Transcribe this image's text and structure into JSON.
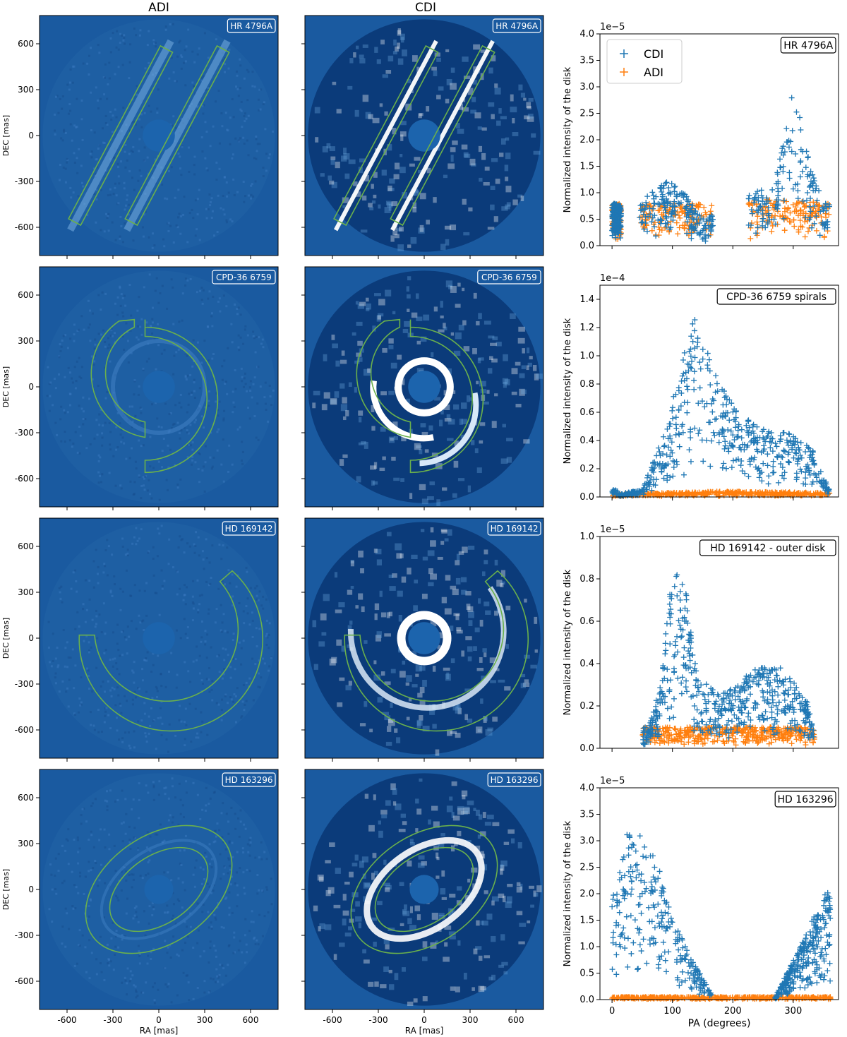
{
  "figure": {
    "col_titles": [
      "ADI",
      "CDI"
    ],
    "image_axes": {
      "xlabel": "RA [mas]",
      "ylabel": "DEC [mas]",
      "xticks": [
        -600,
        -300,
        0,
        300,
        600
      ],
      "yticks": [
        600,
        300,
        0,
        -300,
        -600
      ],
      "tick_labels_x": [
        "-600",
        "-300",
        "0",
        "300",
        "600"
      ],
      "tick_labels_y": [
        "600",
        "300",
        "0",
        "-300",
        "-600"
      ]
    },
    "rows": [
      {
        "target": "HR 4796A",
        "adi_label": "HR 4796A",
        "cdi_label": "HR 4796A",
        "plot_label": "HR 4796A",
        "scale": "1e−5",
        "ymax": 4.0,
        "ytick_labels": [
          "0.0",
          "0.5",
          "1.0",
          "1.5",
          "2.0",
          "2.5",
          "3.0",
          "3.5",
          "4.0"
        ]
      },
      {
        "target": "CPD-36 6759",
        "adi_label": "CPD-36 6759",
        "cdi_label": "CPD-36 6759",
        "plot_label": "CPD-36 6759 spirals",
        "scale": "1e−4",
        "ymax": 1.5,
        "ytick_labels": [
          "0.0",
          "0.2",
          "0.4",
          "0.6",
          "0.8",
          "1.0",
          "1.2",
          "1.4"
        ]
      },
      {
        "target": "HD 169142",
        "adi_label": "HD 169142",
        "cdi_label": "HD 169142",
        "plot_label": "HD 169142 - outer disk",
        "scale": "1e−5",
        "ymax": 1.0,
        "ytick_labels": [
          "0.0",
          "0.2",
          "0.4",
          "0.6",
          "0.8",
          "1.0"
        ]
      },
      {
        "target": "HD 163296",
        "adi_label": "HD 163296",
        "cdi_label": "HD 163296",
        "plot_label": "HD 163296",
        "scale": "1e−5",
        "ymax": 4.0,
        "ytick_labels": [
          "0.0",
          "0.5",
          "1.0",
          "1.5",
          "2.0",
          "2.5",
          "3.0",
          "3.5",
          "4.0"
        ]
      }
    ],
    "plot_axes": {
      "ylabel": "Normalized intensity of the disk",
      "xlabel": "PA (degrees)",
      "xticks": [
        0,
        100,
        200,
        300
      ],
      "xtick_labels": [
        "0",
        "100",
        "200",
        "300"
      ],
      "xlim": [
        -20,
        375
      ]
    },
    "legend": {
      "cdi": "CDI",
      "adi": "ADI"
    },
    "colors": {
      "cdi": "#1f77b4",
      "adi": "#ff7f0e",
      "image_bg": "#1a5aa0",
      "image_dark": "#0b3b7a",
      "contour": "#6ab04c"
    }
  },
  "chart_data": [
    {
      "type": "scatter",
      "title": "HR 4796A",
      "xlabel": "PA (degrees)",
      "ylabel": "Normalized intensity of the disk",
      "ylim": [
        0,
        4e-05
      ],
      "xlim": [
        -20,
        375
      ],
      "legend": "top-left",
      "series": [
        {
          "name": "CDI",
          "ranges": [
            [
              0,
              15
            ],
            [
              45,
              170
            ],
            [
              225,
              360
            ]
          ],
          "peaks": [
            [
              5,
              0.8
            ],
            [
              30,
              0.7
            ],
            [
              100,
              1.3
            ],
            [
              150,
              0.5
            ],
            [
              270,
              1.2
            ],
            [
              300,
              3.0
            ],
            [
              320,
              2.0
            ],
            [
              350,
              0.8
            ]
          ],
          "scale": 1e-05
        },
        {
          "name": "ADI",
          "ranges": [
            [
              0,
              15
            ],
            [
              45,
              165
            ],
            [
              225,
              360
            ]
          ],
          "peaks": [
            [
              5,
              0.8
            ],
            [
              30,
              0.8
            ],
            [
              150,
              0.8
            ],
            [
              300,
              0.9
            ],
            [
              350,
              0.8
            ]
          ],
          "scale": 1e-05
        }
      ]
    },
    {
      "type": "scatter",
      "title": "CPD-36 6759 spirals",
      "xlabel": "PA (degrees)",
      "ylabel": "Normalized intensity of the disk",
      "ylim": [
        0,
        0.00015
      ],
      "xlim": [
        -20,
        375
      ],
      "series": [
        {
          "name": "CDI",
          "ranges": [
            [
              0,
              360
            ]
          ],
          "peaks": [
            [
              10,
              0.02
            ],
            [
              50,
              0.05
            ],
            [
              90,
              0.5
            ],
            [
              135,
              1.32
            ],
            [
              160,
              1.0
            ],
            [
              200,
              0.65
            ],
            [
              240,
              0.5
            ],
            [
              290,
              0.46
            ],
            [
              330,
              0.35
            ],
            [
              360,
              0.05
            ]
          ],
          "scale": 0.0001
        },
        {
          "name": "ADI",
          "ranges": [
            [
              0,
              360
            ]
          ],
          "peaks": [
            [
              0,
              0.02
            ],
            [
              180,
              0.04
            ],
            [
              360,
              0.03
            ]
          ],
          "scale": 0.0001
        }
      ]
    },
    {
      "type": "scatter",
      "title": "HD 169142 - outer disk",
      "xlabel": "PA (degrees)",
      "ylabel": "Normalized intensity of the disk",
      "ylim": [
        0,
        1e-05
      ],
      "xlim": [
        -20,
        375
      ],
      "series": [
        {
          "name": "CDI",
          "ranges": [
            [
              50,
              335
            ]
          ],
          "peaks": [
            [
              55,
              0.05
            ],
            [
              80,
              0.3
            ],
            [
              100,
              0.85
            ],
            [
              120,
              0.8
            ],
            [
              140,
              0.35
            ],
            [
              180,
              0.25
            ],
            [
              240,
              0.38
            ],
            [
              280,
              0.38
            ],
            [
              320,
              0.25
            ],
            [
              335,
              0.1
            ]
          ],
          "scale": 1e-05
        },
        {
          "name": "ADI",
          "ranges": [
            [
              50,
              335
            ]
          ],
          "peaks": [
            [
              60,
              0.1
            ],
            [
              200,
              0.1
            ],
            [
              330,
              0.1
            ]
          ],
          "scale": 1e-05
        }
      ]
    },
    {
      "type": "scatter",
      "title": "HD 163296",
      "xlabel": "PA (degrees)",
      "ylabel": "Normalized intensity of the disk",
      "ylim": [
        0,
        4e-05
      ],
      "xlim": [
        -20,
        375
      ],
      "series": [
        {
          "name": "CDI",
          "ranges": [
            [
              0,
              165
            ],
            [
              270,
              362
            ]
          ],
          "peaks": [
            [
              0,
              1.9
            ],
            [
              30,
              3.5
            ],
            [
              75,
              2.6
            ],
            [
              100,
              1.5
            ],
            [
              150,
              0.4
            ],
            [
              165,
              0.1
            ],
            [
              270,
              0.05
            ],
            [
              320,
              1.2
            ],
            [
              355,
              2.1
            ],
            [
              362,
              1.9
            ]
          ],
          "scale": 1e-05
        },
        {
          "name": "ADI",
          "ranges": [
            [
              0,
              362
            ]
          ],
          "peaks": [
            [
              0,
              0.05
            ],
            [
              180,
              0.05
            ],
            [
              362,
              0.05
            ]
          ],
          "scale": 1e-05
        }
      ]
    }
  ]
}
